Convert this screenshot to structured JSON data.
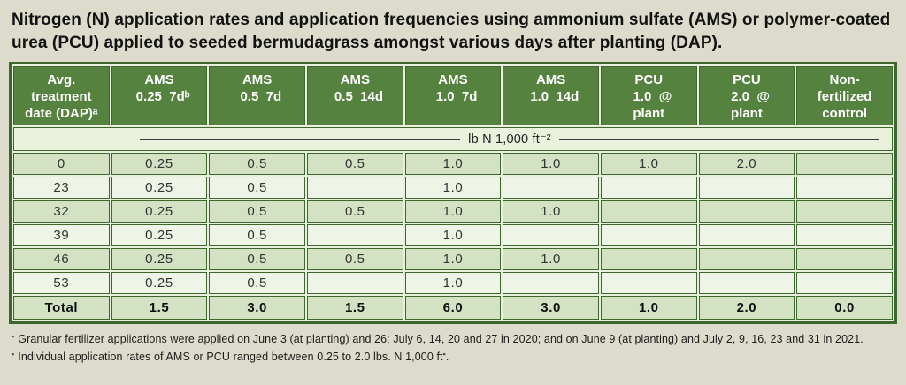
{
  "title": "Nitrogen (N) application rates and application frequencies using ammonium sulfate (AMS) or polymer-coated urea (PCU) applied to seeded bermudagrass amongst various days after planting (DAP).",
  "chart_data": {
    "type": "table",
    "title": "Nitrogen (N) application rates and application frequencies using ammonium sulfate (AMS) or polymer-coated urea (PCU) applied to seeded bermudagrass amongst various days after planting (DAP).",
    "columns": [
      "Avg.\ntreatment\ndate (DAP)ᵃ",
      "AMS\n_0.25_7dᵇ",
      "AMS\n_0.5_7d",
      "AMS\n_0.5_14d",
      "AMS\n_1.0_7d",
      "AMS\n_1.0_14d",
      "PCU\n_1.0_@\nplant",
      "PCU\n_2.0_@\nplant",
      "Non-\nfertilized\ncontrol"
    ],
    "unit_label": "lb N 1,000 ft⁻²",
    "rows": [
      {
        "label": "0",
        "values": [
          "0.25",
          "0.5",
          "0.5",
          "1.0",
          "1.0",
          "1.0",
          "2.0",
          ""
        ]
      },
      {
        "label": "23",
        "values": [
          "0.25",
          "0.5",
          "",
          "1.0",
          "",
          "",
          "",
          ""
        ]
      },
      {
        "label": "32",
        "values": [
          "0.25",
          "0.5",
          "0.5",
          "1.0",
          "1.0",
          "",
          "",
          ""
        ]
      },
      {
        "label": "39",
        "values": [
          "0.25",
          "0.5",
          "",
          "1.0",
          "",
          "",
          "",
          ""
        ]
      },
      {
        "label": "46",
        "values": [
          "0.25",
          "0.5",
          "0.5",
          "1.0",
          "1.0",
          "",
          "",
          ""
        ]
      },
      {
        "label": "53",
        "values": [
          "0.25",
          "0.5",
          "",
          "1.0",
          "",
          "",
          "",
          ""
        ]
      }
    ],
    "total_row": {
      "label": "Total",
      "values": [
        "1.5",
        "3.0",
        "1.5",
        "6.0",
        "3.0",
        "1.0",
        "2.0",
        "0.0"
      ]
    }
  },
  "footnotes": [
    {
      "marker": "▪",
      "text": "Granular fertilizer applications were applied on June 3 (at planting) and 26; July 6, 14, 20 and 27 in 2020; and on June 9 (at planting) and July 2, 9, 16, 23 and 31 in 2021."
    },
    {
      "marker": "▪",
      "text": "Individual application rates of AMS or PCU ranged between 0.25 to 2.0 lbs. N 1,000 ft",
      "tail_sup": "▪",
      "tail": "."
    }
  ],
  "colors": {
    "page_bg": "#dcdbcc",
    "header_green": "#56823f",
    "header_text": "#ffffff",
    "border_green": "#3c682c",
    "gap_bg": "#e9f0dd",
    "row_green": "#d3e2c3",
    "row_pale": "#eef5e6",
    "unit_bg": "#eaf2de"
  }
}
